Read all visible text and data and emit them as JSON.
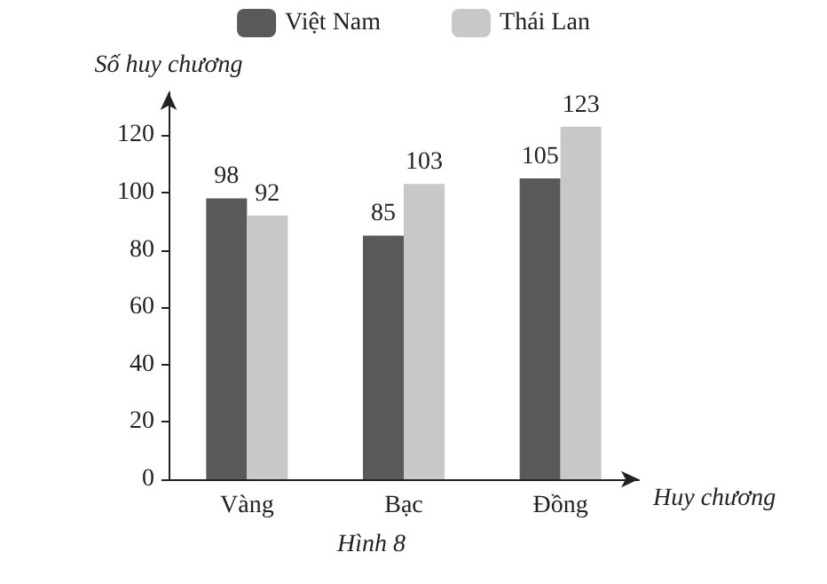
{
  "chart_data": {
    "type": "bar",
    "xlabel": "Huy chương",
    "ylabel": "Số huy chương",
    "annotations": [
      "Hình 8"
    ],
    "categories": [
      "Vàng",
      "Bạc",
      "Đồng"
    ],
    "series": [
      {
        "name": "Việt Nam",
        "color": "#595959",
        "values": [
          98,
          85,
          105
        ]
      },
      {
        "name": "Thái Lan",
        "color": "#c8c8c8",
        "values": [
          92,
          103,
          123
        ]
      }
    ],
    "ylim": [
      0,
      135
    ],
    "yticks": [
      0,
      20,
      40,
      60,
      80,
      100,
      120
    ],
    "data_labels": true,
    "grid": false,
    "legend": "top"
  }
}
